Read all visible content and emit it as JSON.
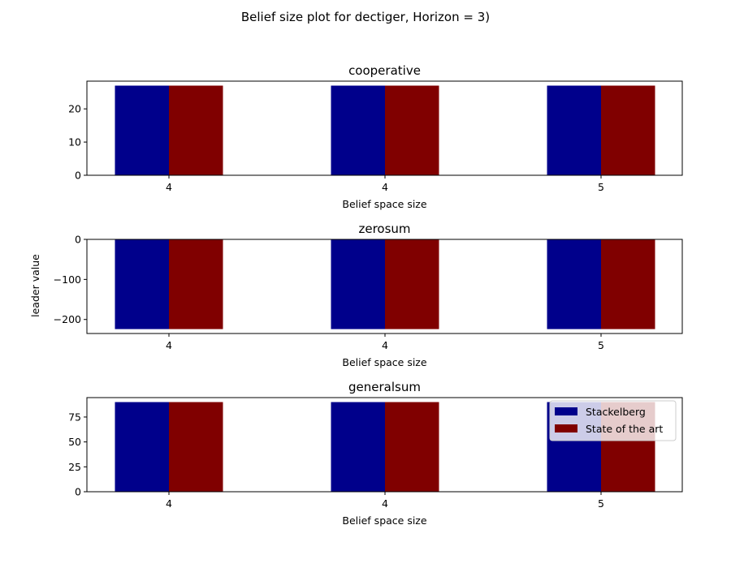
{
  "figure": {
    "suptitle": "Belief size plot for dectiger, Horizon = 3)",
    "ylabel": "leader value"
  },
  "colors": {
    "stackelberg": "#00008b",
    "state_of_the_art": "#800000"
  },
  "legend": {
    "placement": "top-right",
    "entries": [
      "Stackelberg",
      "State of the art"
    ]
  },
  "chart_data": [
    {
      "type": "bar",
      "title": "cooperative",
      "xlabel": "Belief space size",
      "categories": [
        "4",
        "4",
        "5"
      ],
      "ylim": [
        0,
        28.35
      ],
      "yticks": [
        0,
        10,
        20
      ],
      "yticklabels": [
        "0",
        "10",
        "20"
      ],
      "series": [
        {
          "name": "Stackelberg",
          "values": [
            27,
            27,
            27
          ]
        },
        {
          "name": "State of the art",
          "values": [
            27,
            27,
            27
          ]
        }
      ],
      "legend": false
    },
    {
      "type": "bar",
      "title": "zerosum",
      "xlabel": "Belief space size",
      "categories": [
        "4",
        "4",
        "5"
      ],
      "ylim": [
        -235,
        0
      ],
      "yticks": [
        0,
        -100,
        -200
      ],
      "yticklabels": [
        "0",
        "−100",
        "−200"
      ],
      "series": [
        {
          "name": "Stackelberg",
          "values": [
            -224,
            -224,
            -224
          ]
        },
        {
          "name": "State of the art",
          "values": [
            -224,
            -224,
            -224
          ]
        }
      ],
      "legend": false
    },
    {
      "type": "bar",
      "title": "generalsum",
      "xlabel": "Belief space size",
      "categories": [
        "4",
        "4",
        "5"
      ],
      "ylim": [
        0,
        94.5
      ],
      "yticks": [
        0,
        25,
        50,
        75
      ],
      "yticklabels": [
        "0",
        "25",
        "50",
        "75"
      ],
      "series": [
        {
          "name": "Stackelberg",
          "values": [
            90,
            90,
            90
          ]
        },
        {
          "name": "State of the art",
          "values": [
            90,
            90,
            90
          ]
        }
      ],
      "legend": true
    }
  ]
}
